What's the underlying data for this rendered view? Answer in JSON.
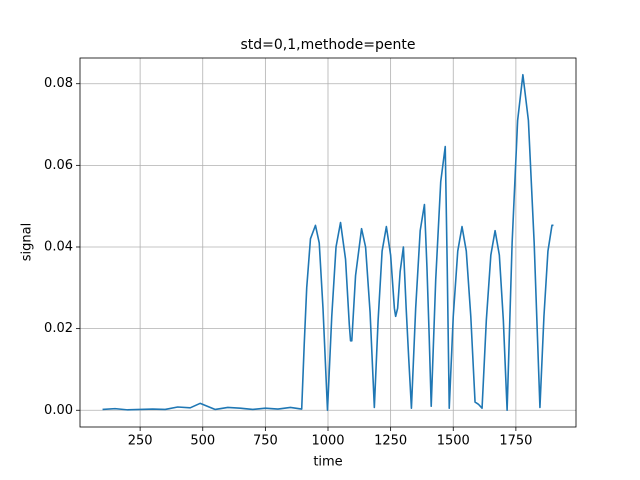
{
  "chart_data": {
    "type": "line",
    "title": "std=0,1,methode=pente",
    "xlabel": "time",
    "ylabel": "signal",
    "x": [
      100,
      150,
      200,
      250,
      300,
      350,
      400,
      450,
      490,
      550,
      600,
      650,
      700,
      750,
      800,
      850,
      895,
      905,
      915,
      930,
      950,
      965,
      980,
      998,
      1015,
      1032,
      1050,
      1070,
      1085,
      1090,
      1095,
      1110,
      1134,
      1150,
      1168,
      1185,
      1200,
      1216,
      1233,
      1250,
      1265,
      1270,
      1278,
      1288,
      1301,
      1312,
      1322,
      1333,
      1350,
      1368,
      1385,
      1395,
      1404,
      1412,
      1430,
      1450,
      1468,
      1476,
      1484,
      1500,
      1518,
      1535,
      1552,
      1570,
      1587,
      1600,
      1615,
      1632,
      1650,
      1667,
      1684,
      1700,
      1715,
      1735,
      1757,
      1778,
      1800,
      1823,
      1846,
      1862,
      1878,
      1894,
      1900
    ],
    "series": [
      {
        "name": "signal",
        "color": "#1f77b4",
        "values": [
          0.0002,
          0.0004,
          0.0001,
          0.0002,
          0.0003,
          0.0002,
          0.0008,
          0.0006,
          0.0017,
          0.0002,
          0.0007,
          0.0005,
          0.0002,
          0.0005,
          0.0003,
          0.0007,
          0.0003,
          0.016,
          0.03,
          0.042,
          0.0453,
          0.041,
          0.025,
          0.0,
          0.023,
          0.04,
          0.046,
          0.037,
          0.021,
          0.017,
          0.017,
          0.033,
          0.0445,
          0.04,
          0.024,
          0.0007,
          0.022,
          0.039,
          0.045,
          0.038,
          0.025,
          0.023,
          0.025,
          0.034,
          0.04,
          0.025,
          0.013,
          0.0005,
          0.025,
          0.044,
          0.0504,
          0.035,
          0.018,
          0.001,
          0.032,
          0.056,
          0.0646,
          0.035,
          0.0005,
          0.023,
          0.039,
          0.045,
          0.039,
          0.023,
          0.002,
          0.0015,
          0.0005,
          0.022,
          0.038,
          0.044,
          0.038,
          0.022,
          0.0,
          0.041,
          0.071,
          0.0822,
          0.071,
          0.041,
          0.0007,
          0.023,
          0.039,
          0.0453,
          0.0453
        ]
      }
    ],
    "xlim": [
      10,
      1990
    ],
    "ylim": [
      -0.0041,
      0.0863
    ],
    "xticks": [
      250,
      500,
      750,
      1000,
      1250,
      1500,
      1750
    ],
    "yticks": [
      {
        "value": 0,
        "label": "0.00"
      },
      {
        "value": 0.02,
        "label": "0.02"
      },
      {
        "value": 0.04,
        "label": "0.04"
      },
      {
        "value": 0.06,
        "label": "0.06"
      },
      {
        "value": 0.08,
        "label": "0.08"
      }
    ],
    "grid": true
  }
}
